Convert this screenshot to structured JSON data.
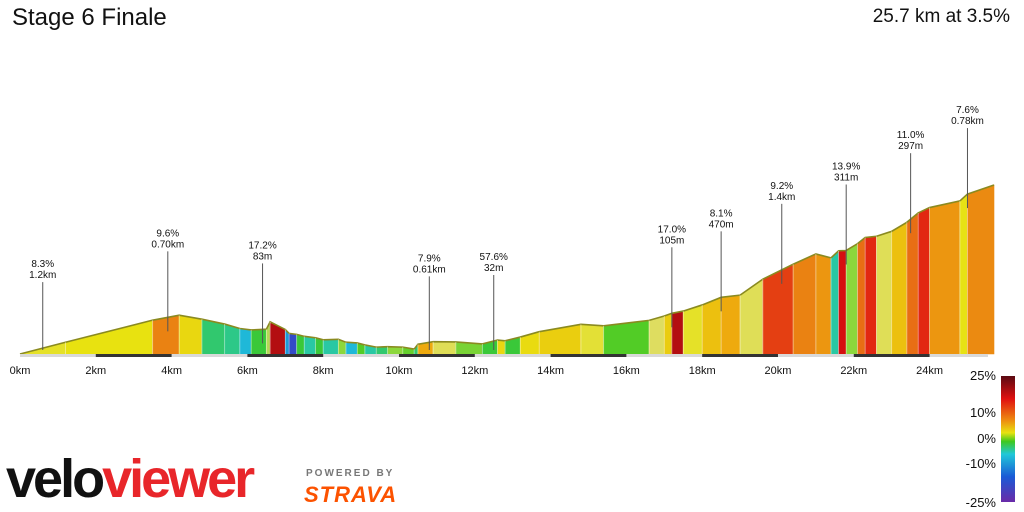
{
  "header": {
    "title": "Stage 6 Finale",
    "summary": "25.7 km at 3.5%"
  },
  "branding": {
    "logo_part1": "velo",
    "logo_part2": "viewer",
    "powered_by": "POWERED BY",
    "strava": "STRAVA"
  },
  "legend": {
    "labels": [
      "25%",
      "10%",
      "0%",
      "-10%",
      "-25%"
    ],
    "colors": [
      "#5a0a12",
      "#e01010",
      "#ee8a10",
      "#e8e210",
      "#3ec81e",
      "#20c8d8",
      "#1a5ad6",
      "#6a2aa8"
    ]
  },
  "chart_data": {
    "type": "area",
    "title": "Stage 6 Finale",
    "xlabel": "",
    "ylabel": "",
    "x_unit": "km",
    "xlim": [
      0,
      25.7
    ],
    "xticks": [
      0,
      2,
      4,
      6,
      8,
      10,
      12,
      14,
      16,
      18,
      20,
      22,
      24
    ],
    "xtick_labels": [
      "0km",
      "2km",
      "4km",
      "6km",
      "8km",
      "10km",
      "12km",
      "14km",
      "16km",
      "18km",
      "20km",
      "22km",
      "24km"
    ],
    "grid": false,
    "profile": {
      "distance_km": [
        0,
        1.2,
        3.5,
        4.2,
        4.8,
        5.4,
        5.8,
        6.1,
        6.5,
        6.6,
        7.0,
        7.1,
        7.3,
        7.5,
        7.8,
        8.0,
        8.4,
        8.6,
        8.9,
        9.1,
        9.4,
        9.7,
        10.1,
        10.4,
        10.5,
        10.9,
        11.5,
        12.2,
        12.6,
        12.8,
        13.2,
        13.7,
        14.8,
        15.4,
        16.6,
        17.0,
        17.2,
        17.5,
        18.0,
        18.5,
        19.0,
        19.6,
        20.4,
        21.0,
        21.4,
        21.6,
        21.8,
        22.1,
        22.3,
        22.6,
        23.0,
        23.4,
        23.7,
        24.0,
        24.8,
        25.0,
        25.7
      ],
      "elevation_m": [
        0,
        48,
        138,
        158,
        142,
        122,
        104,
        98,
        101,
        131,
        100,
        84,
        80,
        72,
        66,
        58,
        60,
        48,
        45,
        37,
        28,
        30,
        28,
        20,
        40,
        50,
        49,
        41,
        57,
        54,
        69,
        91,
        121,
        115,
        137,
        155,
        166,
        175,
        200,
        231,
        240,
        305,
        366,
        408,
        392,
        421,
        422,
        450,
        475,
        480,
        500,
        537,
        575,
        597,
        624,
        652,
        689
      ],
      "grade_pct": [
        3,
        3.5,
        8,
        4,
        -3,
        -3.5,
        -6,
        -2,
        1,
        17,
        -8,
        -16,
        -2,
        -4,
        -2,
        -4,
        0.5,
        -6,
        -1,
        -4,
        -3,
        0.5,
        -0.5,
        -3,
        6,
        2,
        0,
        -2,
        4,
        -2,
        3.8,
        4.4,
        2.7,
        -1,
        1.8,
        4.5,
        17,
        3,
        5,
        6,
        2,
        11,
        8,
        7,
        -4,
        14,
        0.5,
        9,
        12,
        2,
        5,
        9,
        12,
        7,
        3.4,
        7.6,
        5
      ],
      "segment_breaks_km": [
        1.2,
        3.5,
        4.2,
        4.8,
        5.4,
        5.8,
        6.1,
        6.5,
        6.6,
        7.0,
        7.1,
        7.3,
        7.5,
        7.8,
        8.0,
        8.4,
        8.6,
        8.9,
        9.1,
        9.4,
        9.7,
        10.1,
        10.4,
        10.5,
        10.9,
        11.5,
        12.2,
        12.6,
        12.8,
        13.2,
        13.7,
        14.8,
        15.4,
        16.6,
        17.0,
        17.2,
        17.5,
        18.0,
        18.5,
        19.0,
        19.6,
        20.4,
        21.0,
        21.4,
        21.6,
        21.8,
        22.1,
        22.3,
        22.6,
        23.0,
        23.4,
        23.7,
        24.0,
        24.8,
        25.0
      ]
    },
    "annotations": [
      {
        "km": 0.6,
        "grade": "8.3%",
        "length": "1.2km"
      },
      {
        "km": 3.9,
        "grade": "9.6%",
        "length": "0.70km"
      },
      {
        "km": 6.4,
        "grade": "17.2%",
        "length": "83m"
      },
      {
        "km": 10.8,
        "grade": "7.9%",
        "length": "0.61km"
      },
      {
        "km": 12.5,
        "grade": "57.6%",
        "length": "32m"
      },
      {
        "km": 17.2,
        "grade": "17.0%",
        "length": "105m"
      },
      {
        "km": 18.5,
        "grade": "8.1%",
        "length": "470m"
      },
      {
        "km": 20.1,
        "grade": "9.2%",
        "length": "1.4km"
      },
      {
        "km": 21.8,
        "grade": "13.9%",
        "length": "311m"
      },
      {
        "km": 23.5,
        "grade": "11.0%",
        "length": "297m"
      },
      {
        "km": 25.0,
        "grade": "7.6%",
        "length": "0.78km"
      }
    ],
    "legend": {
      "type": "gradient",
      "placement": "bottom-right",
      "range_pct": [
        -25,
        25
      ]
    }
  }
}
